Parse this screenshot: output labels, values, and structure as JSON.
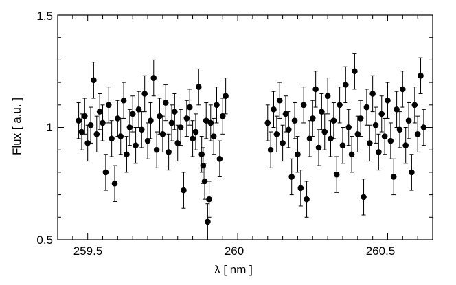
{
  "chart_data": {
    "type": "scatter",
    "title": "",
    "xlabel": "λ [ nm ]",
    "ylabel": "Flux [ a.u. ]",
    "xlim": [
      259.4,
      260.65
    ],
    "ylim": [
      0.5,
      1.5
    ],
    "xticks": [
      259.5,
      260,
      260.5
    ],
    "xtick_labels": [
      "259.5",
      "260",
      "260.5"
    ],
    "yticks": [
      0.5,
      1,
      1.5
    ],
    "ytick_labels": [
      "0.5",
      "1",
      "1.5"
    ],
    "grid": false,
    "legend": "none",
    "marker": "filled-circle",
    "error_bars": true,
    "colors": {
      "points": "#000000",
      "axes": "#000000",
      "background": "#ffffff"
    },
    "series": [
      {
        "x": [
          259.47,
          259.48,
          259.49,
          259.5,
          259.51,
          259.52,
          259.53,
          259.54,
          259.55,
          259.56,
          259.57,
          259.58,
          259.59,
          259.6,
          259.61,
          259.62,
          259.63,
          259.64,
          259.65,
          259.66,
          259.67,
          259.68,
          259.69,
          259.7,
          259.71,
          259.72,
          259.73,
          259.74,
          259.75,
          259.76,
          259.77,
          259.78,
          259.79,
          259.8,
          259.81,
          259.82,
          259.83,
          259.84,
          259.85,
          259.86,
          259.87,
          259.88,
          259.885,
          259.89,
          259.895,
          259.9,
          259.905,
          259.91,
          259.92,
          259.93,
          259.94,
          259.95,
          259.96,
          260.1,
          260.11,
          260.12,
          260.13,
          260.14,
          260.15,
          260.16,
          260.17,
          260.18,
          260.19,
          260.2,
          260.21,
          260.22,
          260.23,
          260.24,
          260.25,
          260.26,
          260.27,
          260.28,
          260.29,
          260.3,
          260.31,
          260.32,
          260.33,
          260.34,
          260.35,
          260.36,
          260.37,
          260.38,
          260.39,
          260.4,
          260.41,
          260.42,
          260.43,
          260.44,
          260.45,
          260.46,
          260.47,
          260.48,
          260.49,
          260.5,
          260.51,
          260.52,
          260.53,
          260.54,
          260.55,
          260.56,
          260.57,
          260.58,
          260.59,
          260.6,
          260.61,
          260.62
        ],
        "y": [
          1.03,
          0.98,
          1.05,
          0.93,
          1.01,
          1.21,
          0.97,
          1.07,
          1.02,
          0.8,
          1.1,
          0.95,
          0.75,
          1.04,
          0.96,
          1.12,
          0.88,
          1.0,
          1.06,
          0.92,
          1.08,
          0.99,
          1.15,
          0.94,
          1.03,
          1.22,
          0.9,
          1.05,
          0.97,
          1.11,
          0.89,
          1.02,
          1.07,
          0.93,
          1.0,
          0.72,
          1.04,
          1.09,
          0.95,
          0.98,
          1.18,
          0.88,
          0.83,
          0.76,
          1.03,
          0.58,
          0.68,
          1.02,
          0.96,
          1.1,
          0.86,
          1.05,
          1.14,
          1.02,
          0.9,
          1.08,
          0.97,
          1.12,
          0.93,
          1.06,
          0.99,
          0.78,
          1.03,
          0.88,
          0.73,
          1.1,
          0.68,
          0.95,
          1.04,
          1.17,
          0.91,
          1.07,
          0.98,
          1.14,
          0.95,
          1.03,
          0.79,
          1.1,
          0.92,
          1.19,
          1.0,
          0.88,
          1.25,
          0.97,
          1.04,
          0.69,
          1.09,
          0.93,
          1.15,
          1.01,
          0.89,
          1.06,
          0.96,
          1.12,
          0.94,
          0.78,
          1.08,
          0.99,
          1.17,
          0.92,
          1.03,
          0.8,
          1.1,
          0.97,
          1.23,
          1.0
        ],
        "y_err": [
          0.08,
          0.08,
          0.08,
          0.08,
          0.08,
          0.08,
          0.08,
          0.08,
          0.08,
          0.08,
          0.08,
          0.08,
          0.08,
          0.08,
          0.08,
          0.08,
          0.08,
          0.08,
          0.08,
          0.08,
          0.08,
          0.08,
          0.08,
          0.08,
          0.08,
          0.08,
          0.08,
          0.08,
          0.08,
          0.08,
          0.08,
          0.08,
          0.08,
          0.08,
          0.08,
          0.08,
          0.08,
          0.08,
          0.08,
          0.08,
          0.08,
          0.08,
          0.08,
          0.08,
          0.08,
          0.08,
          0.08,
          0.08,
          0.08,
          0.08,
          0.08,
          0.08,
          0.08,
          0.08,
          0.08,
          0.08,
          0.08,
          0.08,
          0.08,
          0.08,
          0.08,
          0.08,
          0.08,
          0.08,
          0.08,
          0.08,
          0.08,
          0.08,
          0.08,
          0.08,
          0.08,
          0.08,
          0.08,
          0.08,
          0.08,
          0.08,
          0.08,
          0.08,
          0.08,
          0.08,
          0.08,
          0.08,
          0.08,
          0.08,
          0.08,
          0.08,
          0.08,
          0.08,
          0.08,
          0.08,
          0.08,
          0.08,
          0.08,
          0.08,
          0.08,
          0.08,
          0.08,
          0.08,
          0.08,
          0.08,
          0.08,
          0.08,
          0.08,
          0.08,
          0.08,
          0.08
        ]
      }
    ]
  }
}
